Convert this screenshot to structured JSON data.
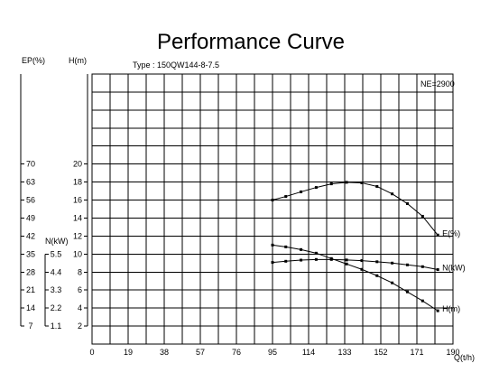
{
  "chart_data": {
    "type": "line",
    "title": "Performance Curve",
    "model": "Type :   150QW144-8-7.5",
    "speed": "NE=2900",
    "xlabel": "Q(t/h)",
    "x_ticks": [
      "0",
      "19",
      "38",
      "57",
      "76",
      "95",
      "114",
      "133",
      "152",
      "171",
      "190"
    ],
    "xlim": [
      0,
      190
    ],
    "axes": {
      "H": {
        "label": "H(m)",
        "ticks": [
          "2",
          "4",
          "6",
          "8",
          "10",
          "12",
          "14",
          "16",
          "18",
          "20"
        ],
        "range": [
          0,
          20
        ]
      },
      "EP": {
        "label": "EP(%)",
        "ticks": [
          "7",
          "14",
          "21",
          "28",
          "35",
          "42",
          "49",
          "56",
          "63",
          "70"
        ],
        "range": [
          0,
          70
        ]
      },
      "N": {
        "label": "N(kW)",
        "ticks": [
          "1.1",
          "2.2",
          "3.3",
          "4.4",
          "5.5"
        ],
        "range": [
          0,
          5.5
        ]
      }
    },
    "series": [
      {
        "name": "E(%)",
        "axis": "EP",
        "x": [
          95,
          102,
          110,
          118,
          126,
          134,
          142,
          150,
          158,
          166,
          174,
          182
        ],
        "y": [
          56,
          57.4,
          59.2,
          60.9,
          62.3,
          62.9,
          62.7,
          61.3,
          58.4,
          54.6,
          49.7,
          42.4
        ]
      },
      {
        "name": "H(m)",
        "axis": "H",
        "x": [
          95,
          102,
          110,
          118,
          126,
          134,
          142,
          150,
          158,
          166,
          174,
          182
        ],
        "y": [
          11,
          10.8,
          10.5,
          10.1,
          9.5,
          8.9,
          8.3,
          7.6,
          6.8,
          5.8,
          4.8,
          3.7
        ]
      },
      {
        "name": "N(kW)",
        "axis": "N",
        "x": [
          95,
          102,
          110,
          118,
          126,
          134,
          142,
          150,
          158,
          166,
          174,
          182
        ],
        "y": [
          4.99,
          5.06,
          5.13,
          5.17,
          5.17,
          5.14,
          5.1,
          5.03,
          4.95,
          4.84,
          4.73,
          4.55
        ]
      }
    ]
  }
}
